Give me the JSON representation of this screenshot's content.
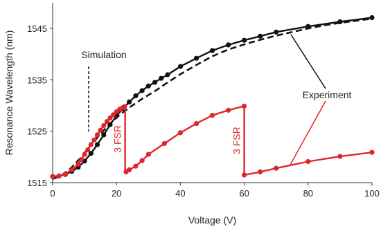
{
  "chart_data": {
    "type": "line",
    "xlabel": "Voltage (V)",
    "ylabel": "Resonance Wavelength (nm)",
    "xlim": [
      0,
      100
    ],
    "ylim": [
      1515,
      1550
    ],
    "x_ticks": [
      0,
      20,
      40,
      60,
      80,
      100
    ],
    "y_ticks": [
      1515,
      1525,
      1535,
      1545
    ],
    "grid": false,
    "legend": "none",
    "colors": {
      "black": "#111111",
      "red": "#e0262c"
    },
    "series": [
      {
        "style": "dashed",
        "color": "#111111",
        "x": [
          0,
          3,
          6,
          9,
          12,
          15,
          18,
          21,
          24,
          28,
          32,
          36,
          40,
          45,
          50,
          55,
          60,
          65,
          70,
          75,
          80,
          85,
          90,
          95,
          100
        ],
        "y": [
          1515.7,
          1516.5,
          1518.0,
          1520.0,
          1522.3,
          1524.5,
          1526.5,
          1528.2,
          1529.6,
          1531.3,
          1532.8,
          1534.5,
          1536.1,
          1537.9,
          1539.6,
          1540.9,
          1541.9,
          1542.8,
          1543.6,
          1544.3,
          1545.0,
          1545.6,
          1546.1,
          1546.5,
          1546.9
        ]
      },
      {
        "style": "solid-markers",
        "color": "#111111",
        "x": [
          0,
          2,
          4,
          6,
          8,
          10,
          12,
          14,
          16,
          18,
          20,
          22,
          24,
          26,
          28,
          30,
          32,
          34,
          36,
          40,
          45,
          50,
          55,
          60,
          65,
          70,
          80,
          90,
          100
        ],
        "y": [
          1516.2,
          1516.3,
          1516.6,
          1517.2,
          1518.0,
          1519.2,
          1520.7,
          1522.4,
          1524.3,
          1526.3,
          1528.0,
          1529.4,
          1530.7,
          1531.9,
          1532.9,
          1533.8,
          1534.5,
          1535.3,
          1536.0,
          1537.6,
          1539.2,
          1540.7,
          1541.8,
          1542.7,
          1543.5,
          1544.3,
          1545.4,
          1546.3,
          1547.1
        ]
      },
      {
        "style": "solid-markers",
        "color": "#e0262c",
        "x": [
          0,
          2,
          4,
          6,
          8,
          9,
          10,
          11,
          12,
          13,
          14,
          15,
          16,
          17,
          18,
          19,
          20,
          21,
          22,
          22.5
        ],
        "y": [
          1516.2,
          1516.3,
          1516.7,
          1517.5,
          1518.6,
          1519.5,
          1520.5,
          1521.4,
          1522.4,
          1523.3,
          1524.3,
          1525.2,
          1526.1,
          1526.9,
          1527.6,
          1528.2,
          1528.8,
          1529.3,
          1529.6,
          1529.8
        ]
      },
      {
        "style": "solid-markers",
        "color": "#e0262c",
        "x": [
          23,
          24,
          26,
          28,
          30,
          35,
          40,
          45,
          50,
          55,
          60
        ],
        "y": [
          1517.1,
          1517.5,
          1518.2,
          1519.3,
          1520.5,
          1522.6,
          1524.7,
          1526.5,
          1528.1,
          1529.1,
          1529.9
        ]
      },
      {
        "style": "solid-markers",
        "color": "#e0262c",
        "x": [
          60,
          65,
          70,
          80,
          90,
          100
        ],
        "y": [
          1516.5,
          1517.1,
          1517.8,
          1519.1,
          1520.1,
          1520.9
        ]
      }
    ],
    "jumps": [
      {
        "x": 22.7,
        "from": 1529.9,
        "to": 1517.1,
        "label": "3 FSR"
      },
      {
        "x": 60,
        "from": 1529.9,
        "to": 1516.5,
        "label": "3 FSR"
      }
    ],
    "annotations": {
      "simulation": "Simulation",
      "experiment": "Experiment"
    }
  }
}
